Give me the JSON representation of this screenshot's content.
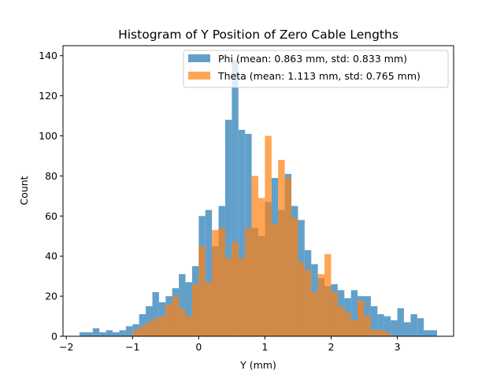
{
  "chart_data": {
    "type": "histogram",
    "title": "Histogram of Y Position of Zero Cable Lengths",
    "xlabel": "Y (mm)",
    "ylabel": "Count",
    "xlim": [
      -2.05,
      3.85
    ],
    "ylim": [
      0,
      145
    ],
    "xticks": [
      -2,
      -1,
      0,
      1,
      2,
      3
    ],
    "yticks": [
      0,
      20,
      40,
      60,
      80,
      100,
      120,
      140
    ],
    "grid": false,
    "legend_position": "top-right",
    "series": [
      {
        "name": "Phi (mean: 0.863 mm, std: 0.833 mm)",
        "color": "#1f77b4",
        "opacity": 0.7,
        "bin_start": -1.8,
        "bin_width": 0.1,
        "counts": [
          2,
          2,
          4,
          2,
          3,
          2,
          3,
          5,
          6,
          11,
          15,
          22,
          17,
          20,
          24,
          31,
          27,
          35,
          60,
          63,
          45,
          65,
          108,
          138,
          103,
          101,
          54,
          50,
          67,
          79,
          63,
          81,
          65,
          58,
          43,
          36,
          29,
          25,
          26,
          23,
          19,
          23,
          20,
          20,
          15,
          11,
          10,
          8,
          14,
          7,
          11,
          9,
          3,
          3
        ]
      },
      {
        "name": "Theta (mean: 1.113 mm, std: 0.765 mm)",
        "color": "#ff7f0e",
        "opacity": 0.7,
        "bin_start": -1.0,
        "bin_width": 0.1,
        "counts": [
          3,
          5,
          7,
          9,
          10,
          16,
          20,
          14,
          10,
          26,
          45,
          27,
          53,
          54,
          39,
          47,
          39,
          54,
          80,
          69,
          100,
          56,
          88,
          79,
          59,
          37,
          33,
          22,
          31,
          41,
          22,
          15,
          12,
          8,
          18,
          10,
          3,
          3,
          2
        ]
      }
    ]
  }
}
